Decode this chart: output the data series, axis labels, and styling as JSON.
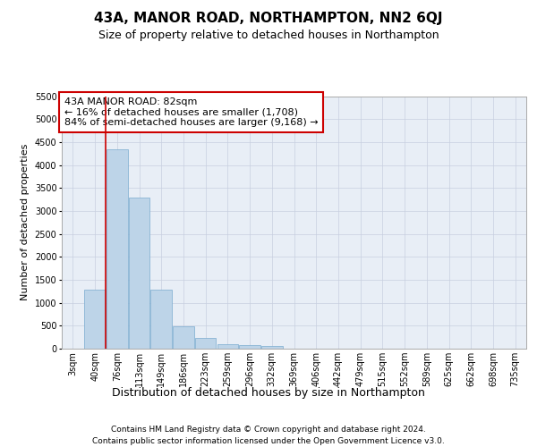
{
  "title1": "43A, MANOR ROAD, NORTHAMPTON, NN2 6QJ",
  "title2": "Size of property relative to detached houses in Northampton",
  "xlabel": "Distribution of detached houses by size in Northampton",
  "ylabel": "Number of detached properties",
  "categories": [
    "3sqm",
    "40sqm",
    "76sqm",
    "113sqm",
    "149sqm",
    "186sqm",
    "223sqm",
    "259sqm",
    "296sqm",
    "332sqm",
    "369sqm",
    "406sqm",
    "442sqm",
    "479sqm",
    "515sqm",
    "552sqm",
    "589sqm",
    "625sqm",
    "662sqm",
    "698sqm",
    "735sqm"
  ],
  "values": [
    0,
    1280,
    4350,
    3300,
    1280,
    490,
    240,
    100,
    70,
    55,
    0,
    0,
    0,
    0,
    0,
    0,
    0,
    0,
    0,
    0,
    0
  ],
  "bar_color": "#bdd4e8",
  "bar_edge_color": "#7aabcf",
  "grid_color": "#c8cfe0",
  "vline_color": "#cc0000",
  "vline_x": 1.5,
  "annotation_text": "43A MANOR ROAD: 82sqm\n← 16% of detached houses are smaller (1,708)\n84% of semi-detached houses are larger (9,168) →",
  "annotation_box_facecolor": "#ffffff",
  "annotation_box_edgecolor": "#cc0000",
  "ylim_max": 5500,
  "yticks": [
    0,
    500,
    1000,
    1500,
    2000,
    2500,
    3000,
    3500,
    4000,
    4500,
    5000,
    5500
  ],
  "footer1": "Contains HM Land Registry data © Crown copyright and database right 2024.",
  "footer2": "Contains public sector information licensed under the Open Government Licence v3.0.",
  "bg_color": "#e8eef6",
  "title1_fontsize": 11,
  "title2_fontsize": 9,
  "xlabel_fontsize": 9,
  "ylabel_fontsize": 8,
  "tick_fontsize": 7,
  "annotation_fontsize": 8,
  "footer_fontsize": 6.5
}
